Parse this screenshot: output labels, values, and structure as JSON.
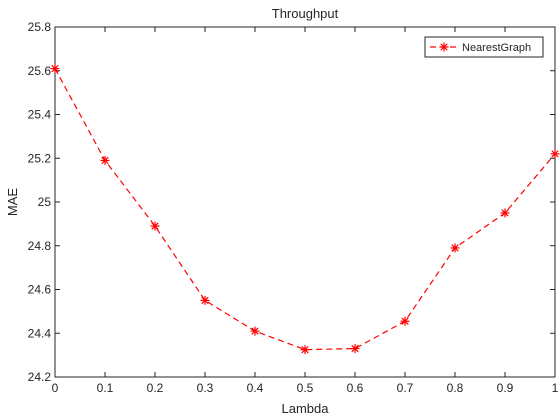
{
  "chart_data": {
    "type": "line",
    "title": "Throughput",
    "xlabel": "Lambda",
    "ylabel": "MAE",
    "xlim": [
      0,
      1
    ],
    "ylim": [
      24.2,
      25.8
    ],
    "x_ticks": [
      "0",
      "0.1",
      "0.2",
      "0.3",
      "0.4",
      "0.5",
      "0.6",
      "0.7",
      "0.8",
      "0.9",
      "1"
    ],
    "y_ticks": [
      "24.2",
      "24.4",
      "24.6",
      "24.8",
      "25",
      "25.2",
      "25.4",
      "25.6",
      "25.8"
    ],
    "x_tick_values": [
      0,
      0.1,
      0.2,
      0.3,
      0.4,
      0.5,
      0.6,
      0.7,
      0.8,
      0.9,
      1
    ],
    "y_tick_values": [
      24.2,
      24.4,
      24.6,
      24.8,
      25.0,
      25.2,
      25.4,
      25.6,
      25.8
    ],
    "grid": false,
    "legend_position": "top-right",
    "series": [
      {
        "name": "NearestGraph",
        "color": "#ff0000",
        "line_style": "dashed",
        "marker": "asterisk",
        "x": [
          0,
          0.1,
          0.2,
          0.3,
          0.4,
          0.5,
          0.6,
          0.7,
          0.8,
          0.9,
          1
        ],
        "y": [
          25.61,
          25.19,
          24.89,
          24.55,
          24.41,
          24.325,
          24.33,
          24.455,
          24.79,
          24.95,
          25.22
        ]
      }
    ]
  }
}
